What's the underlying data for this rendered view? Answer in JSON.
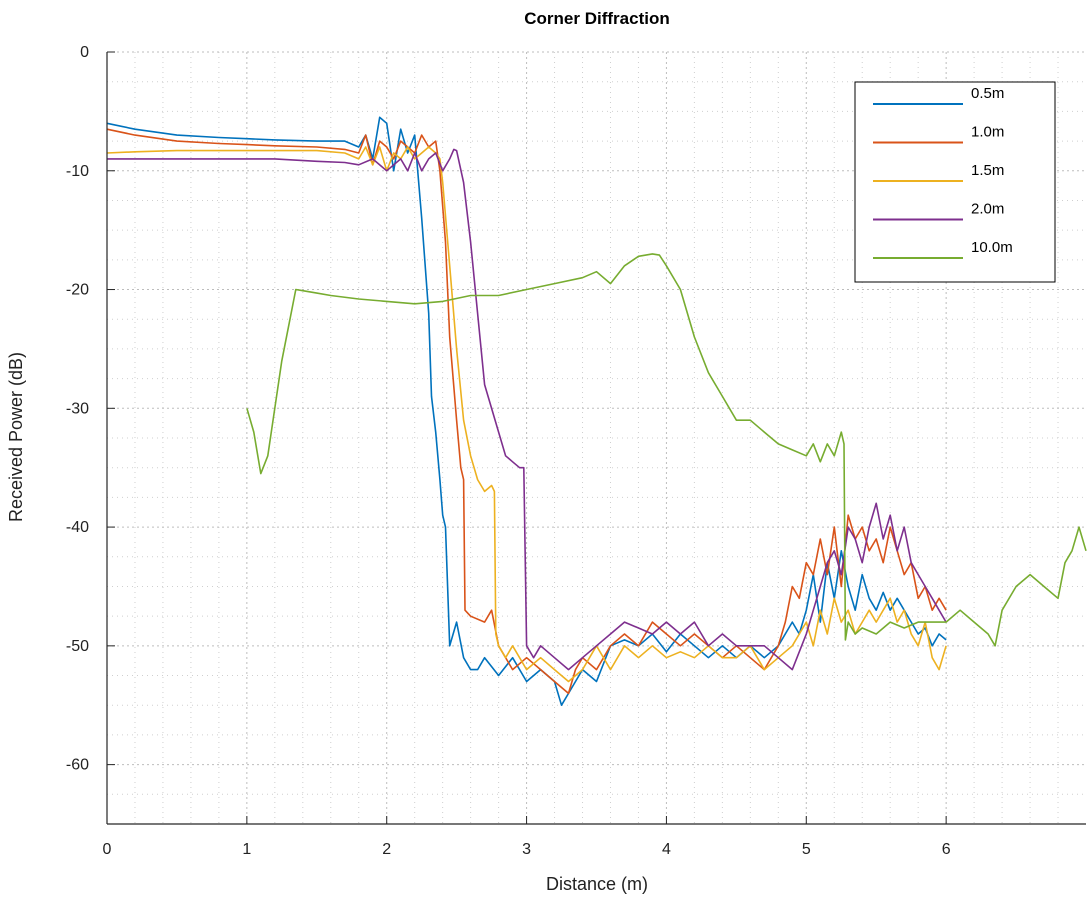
{
  "chart_data": {
    "type": "line",
    "title": "Corner Diffraction",
    "xlabel": "Distance (m)",
    "ylabel": "Received Power (dB)",
    "xlim": [
      0,
      7
    ],
    "ylim": [
      -65,
      0
    ],
    "xticks": [
      0,
      1,
      2,
      3,
      4,
      5,
      6
    ],
    "yticks": [
      0,
      -10,
      -20,
      -30,
      -40,
      -50,
      -60
    ],
    "xtick_labels": [
      "0",
      "1",
      "2",
      "3",
      "4",
      "5",
      "6"
    ],
    "ytick_labels": [
      "0",
      "-10",
      "-20",
      "-30",
      "-40",
      "-50",
      "-60"
    ],
    "grid": true,
    "minor_grid": true,
    "legend_position": "top-right",
    "series": [
      {
        "name": "0.5m",
        "color": "#0072BD",
        "x": [
          0,
          0.2,
          0.5,
          0.8,
          1.0,
          1.2,
          1.5,
          1.7,
          1.8,
          1.85,
          1.9,
          1.95,
          2.0,
          2.05,
          2.1,
          2.15,
          2.2,
          2.25,
          2.3,
          2.32,
          2.35,
          2.38,
          2.4,
          2.42,
          2.45,
          2.5,
          2.55,
          2.6,
          2.65,
          2.7,
          2.8,
          2.9,
          3.0,
          3.1,
          3.2,
          3.25,
          3.3,
          3.4,
          3.5,
          3.6,
          3.7,
          3.8,
          3.9,
          4.0,
          4.1,
          4.2,
          4.3,
          4.4,
          4.5,
          4.6,
          4.7,
          4.8,
          4.9,
          4.95,
          5.0,
          5.05,
          5.1,
          5.15,
          5.2,
          5.25,
          5.3,
          5.35,
          5.4,
          5.45,
          5.5,
          5.55,
          5.6,
          5.65,
          5.7,
          5.75,
          5.8,
          5.85,
          5.9,
          5.95,
          6.0
        ],
        "y": [
          -6,
          -6.5,
          -7,
          -7.2,
          -7.3,
          -7.4,
          -7.5,
          -7.5,
          -8,
          -7,
          -9,
          -5.5,
          -6,
          -10,
          -6.5,
          -8.5,
          -7,
          -14,
          -22,
          -29,
          -32,
          -36,
          -39,
          -40,
          -50,
          -48,
          -51,
          -52,
          -52,
          -51,
          -52.5,
          -51,
          -53,
          -52,
          -53,
          -55,
          -54,
          -52,
          -53,
          -50,
          -49.5,
          -50,
          -49,
          -50.5,
          -49,
          -50,
          -51,
          -50,
          -51,
          -50,
          -51,
          -50,
          -48,
          -49,
          -47,
          -44,
          -48,
          -43,
          -46,
          -42,
          -45,
          -47,
          -44,
          -46,
          -47,
          -45.5,
          -47,
          -46,
          -47,
          -48,
          -49,
          -48.5,
          -50,
          -49,
          -49.5
        ]
      },
      {
        "name": "1.0m",
        "color": "#D95319",
        "x": [
          0,
          0.2,
          0.5,
          0.8,
          1.0,
          1.2,
          1.5,
          1.7,
          1.8,
          1.85,
          1.9,
          1.95,
          2.0,
          2.05,
          2.1,
          2.15,
          2.2,
          2.25,
          2.3,
          2.35,
          2.38,
          2.42,
          2.45,
          2.5,
          2.53,
          2.55,
          2.56,
          2.6,
          2.7,
          2.75,
          2.8,
          2.9,
          3.0,
          3.1,
          3.2,
          3.3,
          3.35,
          3.4,
          3.5,
          3.6,
          3.7,
          3.8,
          3.9,
          4.0,
          4.1,
          4.2,
          4.3,
          4.4,
          4.5,
          4.6,
          4.7,
          4.8,
          4.85,
          4.9,
          4.95,
          5.0,
          5.05,
          5.1,
          5.15,
          5.2,
          5.25,
          5.3,
          5.35,
          5.4,
          5.45,
          5.5,
          5.55,
          5.6,
          5.65,
          5.7,
          5.75,
          5.8,
          5.85,
          5.9,
          5.95,
          6.0
        ],
        "y": [
          -6.5,
          -7,
          -7.5,
          -7.7,
          -7.8,
          -7.9,
          -8,
          -8.2,
          -8.5,
          -7,
          -9.5,
          -7.5,
          -8,
          -9,
          -7.5,
          -8,
          -8.5,
          -7,
          -8,
          -7.5,
          -10,
          -16,
          -24,
          -31,
          -35,
          -36,
          -47,
          -47.5,
          -48,
          -47,
          -50,
          -52,
          -51,
          -52,
          -53,
          -54,
          -52,
          -51,
          -52,
          -50,
          -49,
          -50,
          -48,
          -49,
          -50,
          -49,
          -50,
          -51,
          -50,
          -51,
          -52,
          -50,
          -48,
          -45,
          -46,
          -43,
          -44,
          -41,
          -44,
          -40,
          -45,
          -39,
          -41,
          -40,
          -42,
          -41,
          -43,
          -40,
          -42,
          -44,
          -43,
          -46,
          -45,
          -47,
          -46,
          -47
        ]
      },
      {
        "name": "1.5m",
        "color": "#EDB120",
        "x": [
          0,
          0.2,
          0.5,
          0.8,
          1.0,
          1.2,
          1.5,
          1.7,
          1.8,
          1.85,
          1.9,
          1.95,
          2.0,
          2.05,
          2.1,
          2.15,
          2.2,
          2.25,
          2.3,
          2.35,
          2.38,
          2.4,
          2.45,
          2.5,
          2.55,
          2.6,
          2.65,
          2.7,
          2.75,
          2.77,
          2.78,
          2.8,
          2.85,
          2.9,
          3.0,
          3.1,
          3.2,
          3.3,
          3.4,
          3.5,
          3.6,
          3.7,
          3.8,
          3.9,
          4.0,
          4.1,
          4.2,
          4.3,
          4.4,
          4.5,
          4.6,
          4.7,
          4.8,
          4.9,
          5.0,
          5.05,
          5.1,
          5.15,
          5.2,
          5.25,
          5.3,
          5.35,
          5.4,
          5.45,
          5.5,
          5.55,
          5.6,
          5.65,
          5.7,
          5.75,
          5.8,
          5.85,
          5.9,
          5.95,
          6.0
        ],
        "y": [
          -8.5,
          -8.4,
          -8.3,
          -8.3,
          -8.3,
          -8.3,
          -8.3,
          -8.5,
          -9,
          -8,
          -9.5,
          -8,
          -10,
          -8.5,
          -9,
          -8,
          -9,
          -8.5,
          -8,
          -8.5,
          -9,
          -11,
          -18,
          -25,
          -31,
          -34,
          -36,
          -37,
          -36.5,
          -37,
          -49,
          -50,
          -51,
          -50,
          -52,
          -51,
          -52,
          -53,
          -52,
          -50,
          -52,
          -50,
          -51,
          -50,
          -51,
          -50.5,
          -51,
          -50,
          -51,
          -51,
          -50,
          -52,
          -51,
          -50,
          -48,
          -50,
          -47,
          -49,
          -46,
          -48,
          -47,
          -49,
          -48,
          -47,
          -48,
          -47,
          -46,
          -48,
          -47,
          -49,
          -50,
          -48,
          -51,
          -52,
          -50
        ]
      },
      {
        "name": "2.0m",
        "color": "#7E2F8E",
        "x": [
          0,
          0.2,
          0.5,
          0.8,
          1.0,
          1.2,
          1.5,
          1.7,
          1.8,
          1.9,
          2.0,
          2.1,
          2.15,
          2.2,
          2.25,
          2.3,
          2.35,
          2.4,
          2.45,
          2.48,
          2.5,
          2.55,
          2.6,
          2.65,
          2.7,
          2.8,
          2.85,
          2.9,
          2.95,
          2.98,
          3.0,
          3.05,
          3.1,
          3.2,
          3.3,
          3.4,
          3.5,
          3.6,
          3.7,
          3.8,
          3.9,
          4.0,
          4.1,
          4.2,
          4.3,
          4.4,
          4.5,
          4.6,
          4.7,
          4.8,
          4.9,
          5.0,
          5.05,
          5.1,
          5.15,
          5.2,
          5.25,
          5.3,
          5.35,
          5.4,
          5.45,
          5.5,
          5.55,
          5.6,
          5.65,
          5.7,
          5.75,
          5.8,
          5.85,
          5.9,
          5.95,
          6.0
        ],
        "y": [
          -9,
          -9,
          -9,
          -9,
          -9,
          -9,
          -9.2,
          -9.3,
          -9.5,
          -9,
          -10,
          -9,
          -10,
          -8.5,
          -10,
          -9,
          -8.5,
          -10,
          -9,
          -8.2,
          -8.3,
          -11,
          -16,
          -22,
          -28,
          -32,
          -34,
          -34.5,
          -35,
          -35,
          -50,
          -51,
          -50,
          -51,
          -52,
          -51,
          -50,
          -49,
          -48,
          -48.5,
          -49,
          -48,
          -49,
          -48,
          -50,
          -49,
          -50,
          -50,
          -50,
          -51,
          -52,
          -49,
          -47,
          -45,
          -43,
          -42,
          -44,
          -40,
          -41,
          -43,
          -40,
          -38,
          -41,
          -39,
          -42,
          -40,
          -43,
          -44,
          -45,
          -46,
          -47,
          -48
        ]
      },
      {
        "name": "10.0m",
        "color": "#77AC30",
        "x": [
          1.0,
          1.05,
          1.1,
          1.15,
          1.2,
          1.25,
          1.3,
          1.35,
          1.4,
          1.5,
          1.6,
          1.8,
          2.0,
          2.2,
          2.4,
          2.6,
          2.8,
          3.0,
          3.2,
          3.4,
          3.5,
          3.6,
          3.7,
          3.8,
          3.9,
          3.95,
          4.0,
          4.1,
          4.2,
          4.3,
          4.4,
          4.5,
          4.6,
          4.7,
          4.8,
          4.9,
          5.0,
          5.05,
          5.1,
          5.15,
          5.2,
          5.25,
          5.27,
          5.28,
          5.3,
          5.35,
          5.4,
          5.5,
          5.6,
          5.7,
          5.8,
          5.9,
          6.0,
          6.1,
          6.2,
          6.3,
          6.35,
          6.4,
          6.5,
          6.6,
          6.7,
          6.8,
          6.85,
          6.9,
          6.95,
          7.0
        ],
        "y": [
          -30,
          -32,
          -35.5,
          -34,
          -30,
          -26,
          -23,
          -20,
          -20.1,
          -20.3,
          -20.5,
          -20.8,
          -21,
          -21.2,
          -21,
          -20.5,
          -20.5,
          -20,
          -19.5,
          -19,
          -18.5,
          -19.5,
          -18,
          -17.2,
          -17,
          -17.1,
          -18,
          -20,
          -24,
          -27,
          -29,
          -31,
          -31,
          -32,
          -33,
          -33.5,
          -34,
          -33,
          -34.5,
          -33,
          -34,
          -32,
          -33,
          -49.5,
          -48,
          -49,
          -48.5,
          -49,
          -48,
          -48.5,
          -48,
          -48,
          -48,
          -47,
          -48,
          -49,
          -50,
          -47,
          -45,
          -44,
          -45,
          -46,
          -43,
          -42,
          -40,
          -42
        ]
      }
    ]
  }
}
